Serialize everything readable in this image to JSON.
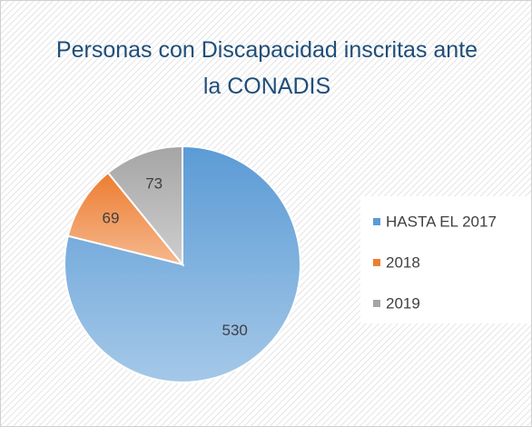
{
  "chart_data": {
    "type": "pie",
    "title": "Personas con Discapacidad inscritas ante la CONADIS",
    "categories": [
      "HASTA EL 2017",
      "2018",
      "2019"
    ],
    "values": [
      530,
      69,
      73
    ],
    "colors": [
      "#5b9bd5",
      "#ed7d31",
      "#a5a5a5"
    ],
    "legend": "right"
  }
}
